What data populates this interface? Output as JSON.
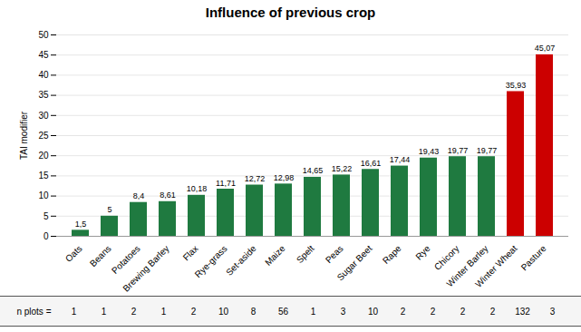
{
  "chart_data": {
    "type": "bar",
    "title": "Influence of previous crop",
    "ylabel": "TAI modifier",
    "categories": [
      "Oats",
      "Beans",
      "Potatoes",
      "Brewing Barley",
      "Flax",
      "Rye-grass",
      "Set-aside",
      "Maize",
      "Spelt",
      "Peas",
      "Sugar Beet",
      "Rape",
      "Rye",
      "Chicory",
      "Winter Barley",
      "Winter Wheat",
      "Pasture"
    ],
    "values": [
      1.5,
      5.0,
      8.4,
      8.61,
      10.18,
      11.71,
      12.72,
      12.98,
      14.65,
      15.22,
      16.61,
      17.44,
      19.43,
      19.77,
      19.77,
      35.93,
      45.07
    ],
    "value_labels": [
      "1,5",
      "5",
      "8,4",
      "8,61",
      "10,18",
      "11,71",
      "12,72",
      "12,98",
      "14,65",
      "15,22",
      "16,61",
      "17,44",
      "19,43",
      "19,77",
      "19,77",
      "35,93",
      "45,07"
    ],
    "data_labels": true,
    "colors": [
      "#1f7a40",
      "#1f7a40",
      "#1f7a40",
      "#1f7a40",
      "#1f7a40",
      "#1f7a40",
      "#1f7a40",
      "#1f7a40",
      "#1f7a40",
      "#1f7a40",
      "#1f7a40",
      "#1f7a40",
      "#1f7a40",
      "#1f7a40",
      "#1f7a40",
      "#cc0000",
      "#cc0000"
    ],
    "ylim": [
      0,
      50
    ],
    "yticks": [
      0,
      5,
      10,
      15,
      20,
      25,
      30,
      35,
      40,
      45,
      50
    ],
    "grid": true,
    "n_plots_label": "n plots =",
    "n_plots": [
      1,
      1,
      2,
      1,
      2,
      10,
      8,
      56,
      1,
      3,
      10,
      2,
      2,
      2,
      2,
      132,
      3
    ]
  }
}
